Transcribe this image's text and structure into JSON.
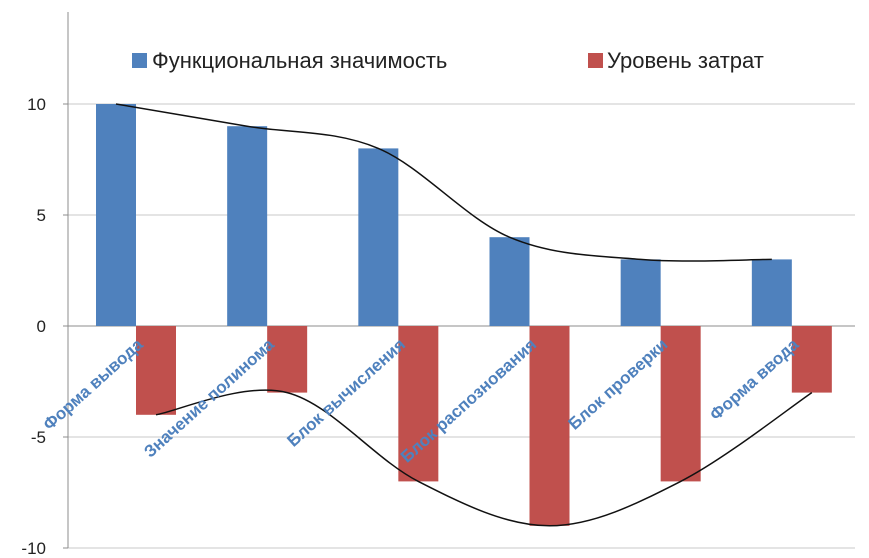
{
  "chart_data": {
    "type": "bar",
    "categories": [
      "Форма вывода",
      "Значение полинома",
      "Блок вычисления",
      "Блок распознования",
      "Блок проверки",
      "Форма ввода"
    ],
    "series": [
      {
        "name": "Функциональная значимость",
        "values": [
          10,
          9,
          8,
          4,
          3,
          3
        ],
        "color": "#4f81bd"
      },
      {
        "name": "Уровень затрат",
        "values": [
          -4,
          -3,
          -7,
          -9,
          -7,
          -3
        ],
        "color": "#c0504d"
      }
    ],
    "yticks": [
      "10",
      "5",
      "0",
      "-5",
      "-10"
    ],
    "ylim": [
      -10,
      10
    ],
    "grid": true,
    "legend_position": "top"
  }
}
